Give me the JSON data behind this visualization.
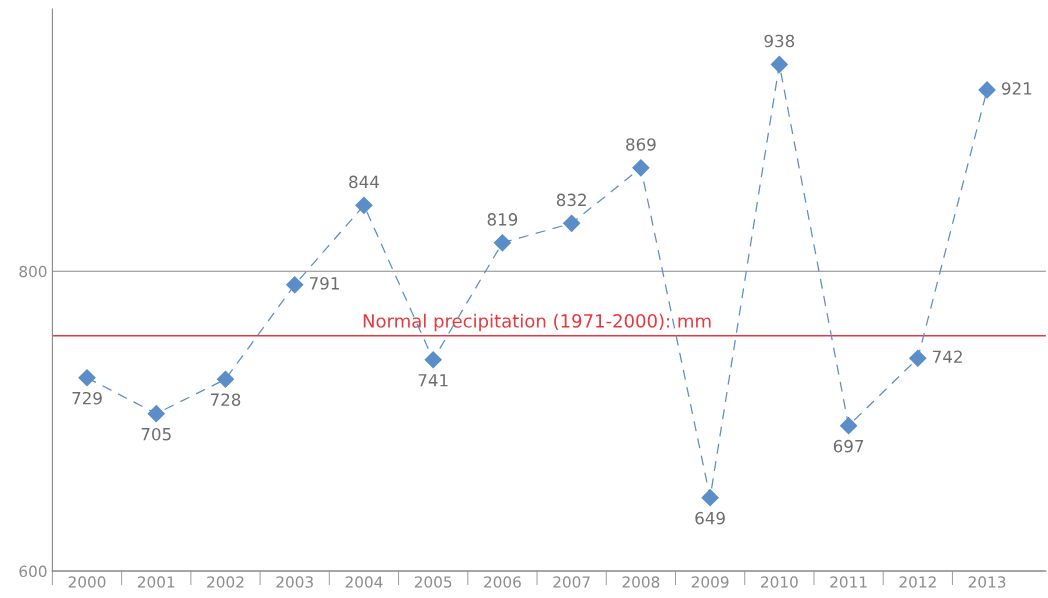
{
  "chart_data": {
    "type": "line",
    "categories": [
      "2000",
      "2001",
      "2002",
      "2003",
      "2004",
      "2005",
      "2006",
      "2007",
      "2008",
      "2009",
      "2010",
      "2011",
      "2012",
      "2013"
    ],
    "series": [
      {
        "color": "#5b8ec8",
        "values": [
          729,
          705,
          728,
          791,
          844,
          741,
          819,
          832,
          869,
          649,
          938,
          697,
          742,
          921
        ]
      }
    ],
    "ylim": [
      600,
      975
    ],
    "yticks": [
      600,
      800
    ],
    "grid": "y",
    "marker": "diamond",
    "line_style": "dashed",
    "data_labels": true,
    "ref_lines": [
      {
        "axis": "y",
        "value": 757,
        "label": "Normal precipitation (1971-2000): mm",
        "color": "#e8383d"
      }
    ]
  }
}
